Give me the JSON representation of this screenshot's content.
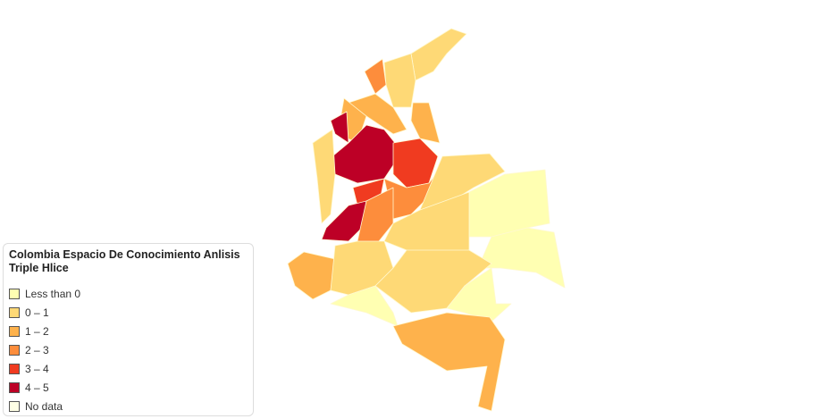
{
  "legend": {
    "title": "Colombia Espacio De Conocimiento Anlisis Triple Hlice",
    "items": [
      {
        "label": "Less than 0",
        "color": "#ffffb2"
      },
      {
        "label": "0 – 1",
        "color": "#fed976"
      },
      {
        "label": "1 – 2",
        "color": "#feb24c"
      },
      {
        "label": "2 – 3",
        "color": "#fd8d3c"
      },
      {
        "label": "3 – 4",
        "color": "#f03b20"
      },
      {
        "label": "4 – 5",
        "color": "#bd0026"
      },
      {
        "label": "No data",
        "color": "#ffffe5"
      }
    ]
  }
}
